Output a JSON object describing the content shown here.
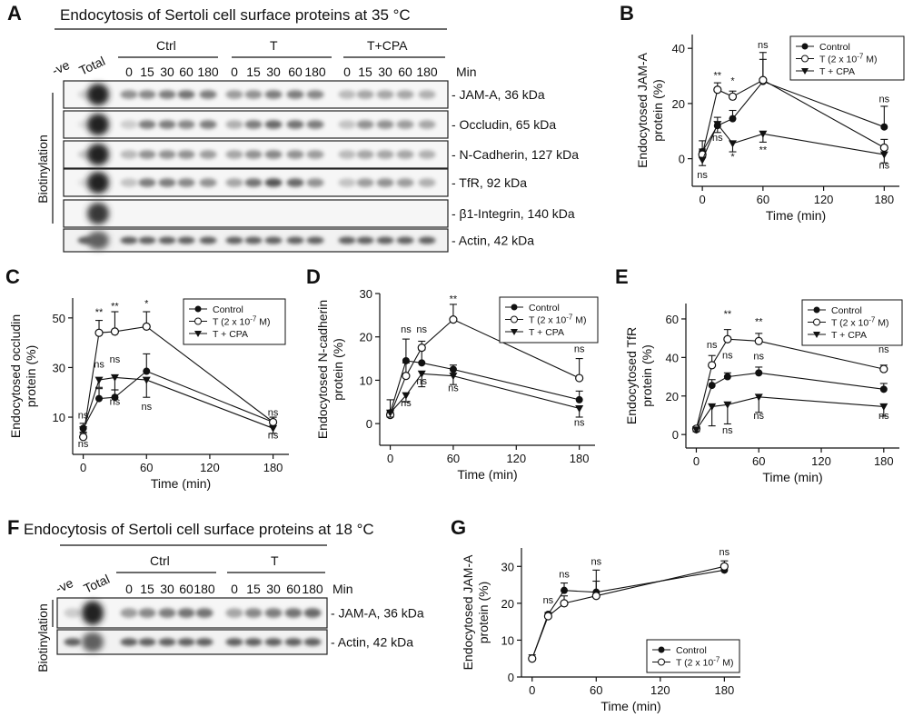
{
  "panelA": {
    "letter": "A",
    "title": "Endocytosis of Sertoli cell surface proteins at 35 °C",
    "groups": [
      "Ctrl",
      "T",
      "T+CPA"
    ],
    "lanes_neg": "-ve",
    "lanes_total": "Total",
    "times": [
      "0",
      "15",
      "30",
      "60",
      "180"
    ],
    "min_label": "Min",
    "side_label": "Biotinylation",
    "bands": [
      "JAM-A, 36 kDa",
      "Occludin, 65 kDa",
      "N-Cadherin, 127 kDa",
      "TfR, 92 kDa",
      "β1-Integrin, 140 kDa",
      "Actin, 42 kDa"
    ]
  },
  "panelF": {
    "letter": "F",
    "title": "Endocytosis of Sertoli cell surface proteins at 18 °C",
    "groups": [
      "Ctrl",
      "T"
    ],
    "lanes_neg": "-ve",
    "lanes_total": "Total",
    "times": [
      "0",
      "15",
      "30",
      "60",
      "180"
    ],
    "min_label": "Min",
    "side_label": "Biotinylation",
    "bands": [
      "JAM-A, 36 kDa",
      "Actin, 42 kDa"
    ]
  },
  "chart_data": [
    {
      "id": "B",
      "letter": "B",
      "type": "line",
      "ylabel": "Endocytosed JAM-A protein (%)",
      "ylabel_lines": [
        "Endocytosed JAM-A",
        "protein (%)"
      ],
      "xlabel": "Time (min)",
      "xlim": [
        -10,
        195
      ],
      "ylim": [
        -10,
        45
      ],
      "xticks": [
        0,
        60,
        120,
        180
      ],
      "yticks": [
        0,
        20,
        40
      ],
      "legend": [
        "Control",
        "T (2 x 10",
        "-7",
        " M)",
        "T + CPA"
      ],
      "series": [
        {
          "name": "Control",
          "marker": "filled",
          "x": [
            0,
            15,
            30,
            60,
            180
          ],
          "y": [
            2.5,
            12,
            14.5,
            28,
            11.5
          ],
          "err": [
            4,
            3,
            3,
            8,
            7.5
          ]
        },
        {
          "name": "T (2 x 10-7 M)",
          "marker": "open",
          "x": [
            0,
            15,
            30,
            60,
            180
          ],
          "y": [
            1.5,
            25,
            22.5,
            28.5,
            4
          ],
          "err": [
            2,
            2.5,
            2,
            10,
            3
          ]
        },
        {
          "name": "T + CPA",
          "marker": "tri",
          "x": [
            0,
            15,
            30,
            60,
            180
          ],
          "y": [
            -0.5,
            12.5,
            5.5,
            9,
            1.5
          ],
          "err": [
            2,
            3,
            3,
            3,
            3
          ]
        }
      ],
      "annotations": [
        {
          "x": 15,
          "y": 29,
          "text": "**"
        },
        {
          "x": 30,
          "y": 27,
          "text": "*"
        },
        {
          "x": 60,
          "y": 40,
          "text": "ns"
        },
        {
          "x": 180,
          "y": 20.5,
          "text": "ns"
        },
        {
          "x": 0,
          "y": -7,
          "text": "ns"
        },
        {
          "x": 15,
          "y": 6.5,
          "text": "ns"
        },
        {
          "x": 30,
          "y": -0.5,
          "text": "*"
        },
        {
          "x": 60,
          "y": 2,
          "text": "**"
        },
        {
          "x": 180,
          "y": -3.5,
          "text": "ns"
        }
      ]
    },
    {
      "id": "C",
      "letter": "C",
      "type": "line",
      "ylabel": "Endocytosed occludin protein (%)",
      "ylabel_lines": [
        "Endocytosed occludin",
        "protein (%)"
      ],
      "xlabel": "Time (min)",
      "xlim": [
        -10,
        195
      ],
      "ylim": [
        -5,
        58
      ],
      "xticks": [
        0,
        60,
        120,
        180
      ],
      "yticks": [
        10,
        30,
        50
      ],
      "legend": [
        "Control",
        "T (2 x 10",
        "-7",
        " M)",
        "T + CPA"
      ],
      "series": [
        {
          "name": "Control",
          "marker": "filled",
          "x": [
            0,
            15,
            30,
            60,
            180
          ],
          "y": [
            5.5,
            17.5,
            18,
            28.5,
            8
          ],
          "err": [
            2,
            4,
            3,
            7,
            2
          ]
        },
        {
          "name": "T (2 x 10-7 M)",
          "marker": "open",
          "x": [
            0,
            15,
            30,
            60,
            180
          ],
          "y": [
            2,
            44,
            44.5,
            46.5,
            8
          ],
          "err": [
            2,
            5,
            8,
            6,
            2
          ]
        },
        {
          "name": "T + CPA",
          "marker": "tri",
          "x": [
            0,
            15,
            30,
            60,
            180
          ],
          "y": [
            5,
            25,
            26,
            25,
            5.5
          ],
          "err": [
            1.5,
            3,
            5,
            7,
            2
          ]
        }
      ],
      "annotations": [
        {
          "x": 0,
          "y": 9.5,
          "text": "ns"
        },
        {
          "x": 15,
          "y": 51,
          "text": "**"
        },
        {
          "x": 30,
          "y": 53.5,
          "text": "**"
        },
        {
          "x": 60,
          "y": 54.5,
          "text": "*"
        },
        {
          "x": 15,
          "y": 30,
          "text": "ns"
        },
        {
          "x": 30,
          "y": 32,
          "text": "ns"
        },
        {
          "x": 180,
          "y": 10.5,
          "text": "ns"
        },
        {
          "x": 0,
          "y": -2,
          "text": "ns"
        },
        {
          "x": 30,
          "y": 15,
          "text": "ns"
        },
        {
          "x": 60,
          "y": 13,
          "text": "ns"
        },
        {
          "x": 180,
          "y": 1.5,
          "text": "ns"
        }
      ]
    },
    {
      "id": "D",
      "letter": "D",
      "type": "line",
      "ylabel": "Endocytosed N-cadherin protein (%)",
      "ylabel_lines": [
        "Endocytosed N-cadherin",
        "protein (%)"
      ],
      "xlabel": "Time (min)",
      "xlim": [
        -10,
        195
      ],
      "ylim": [
        -5,
        30
      ],
      "xticks": [
        0,
        60,
        120,
        180
      ],
      "yticks": [
        0,
        10,
        20,
        30
      ],
      "legend": [
        "Control",
        "T (2 x 10",
        "-7",
        " M)",
        "T + CPA"
      ],
      "series": [
        {
          "name": "Control",
          "marker": "filled",
          "x": [
            0,
            15,
            30,
            60,
            180
          ],
          "y": [
            2.5,
            14.5,
            14,
            12.5,
            5.5
          ],
          "err": [
            3,
            5,
            3,
            1,
            2
          ]
        },
        {
          "name": "T (2 x 10-7 M)",
          "marker": "open",
          "x": [
            0,
            15,
            30,
            60,
            180
          ],
          "y": [
            2,
            11,
            17.5,
            24,
            10.5
          ],
          "err": [
            1,
            3,
            1.5,
            3.5,
            4.5
          ]
        },
        {
          "name": "T + CPA",
          "marker": "tri",
          "x": [
            0,
            15,
            30,
            60,
            180
          ],
          "y": [
            2.5,
            6.5,
            11.5,
            11,
            3.5
          ],
          "err": [
            1,
            1.5,
            3,
            2,
            2
          ]
        }
      ],
      "annotations": [
        {
          "x": 15,
          "y": 21,
          "text": "ns"
        },
        {
          "x": 30,
          "y": 21,
          "text": "ns"
        },
        {
          "x": 60,
          "y": 28,
          "text": "**"
        },
        {
          "x": 180,
          "y": 16.5,
          "text": "ns"
        },
        {
          "x": 15,
          "y": 4,
          "text": "ns"
        },
        {
          "x": 30,
          "y": 9,
          "text": "ns"
        },
        {
          "x": 60,
          "y": 7.5,
          "text": "ns"
        },
        {
          "x": 180,
          "y": -0.5,
          "text": "ns"
        }
      ]
    },
    {
      "id": "E",
      "letter": "E",
      "type": "line",
      "ylabel": "Endocytosed TfR protein (%)",
      "ylabel_lines": [
        "Endocytosed TfR",
        "protein (%)"
      ],
      "xlabel": "Time (min)",
      "xlim": [
        -10,
        195
      ],
      "ylim": [
        -7,
        68
      ],
      "xticks": [
        0,
        60,
        120,
        180
      ],
      "yticks": [
        0,
        20,
        40,
        60
      ],
      "legend": [
        "Control",
        "T (2 x 10",
        "-7",
        " M)",
        "T + CPA"
      ],
      "series": [
        {
          "name": "Control",
          "marker": "filled",
          "x": [
            0,
            15,
            30,
            60,
            180
          ],
          "y": [
            2.5,
            25.5,
            30,
            32,
            23.5
          ],
          "err": [
            1,
            3,
            2,
            3,
            3
          ]
        },
        {
          "name": "T (2 x 10-7 M)",
          "marker": "open",
          "x": [
            0,
            15,
            30,
            60,
            180
          ],
          "y": [
            3,
            36,
            49.5,
            48.5,
            34
          ],
          "err": [
            1,
            5,
            5,
            4,
            2
          ]
        },
        {
          "name": "T + CPA",
          "marker": "tri",
          "x": [
            0,
            15,
            30,
            60,
            180
          ],
          "y": [
            2.5,
            14.5,
            15.5,
            19.5,
            14.5
          ],
          "err": [
            1,
            10,
            10,
            8,
            5
          ]
        }
      ],
      "annotations": [
        {
          "x": 30,
          "y": 61,
          "text": "**"
        },
        {
          "x": 60,
          "y": 57,
          "text": "**"
        },
        {
          "x": 15,
          "y": 45,
          "text": "ns"
        },
        {
          "x": 30,
          "y": 39.5,
          "text": "ns"
        },
        {
          "x": 60,
          "y": 39,
          "text": "ns"
        },
        {
          "x": 180,
          "y": 42.5,
          "text": "ns"
        },
        {
          "x": 30,
          "y": 0.5,
          "text": "ns"
        },
        {
          "x": 60,
          "y": 8,
          "text": "ns"
        },
        {
          "x": 180,
          "y": 8,
          "text": "ns"
        }
      ]
    },
    {
      "id": "G",
      "letter": "G",
      "type": "line",
      "ylabel": "Endocytosed JAM-A protein (%)",
      "ylabel_lines": [
        "Endocytosed JAM-A",
        "protein (%)"
      ],
      "xlabel": "Time (min)",
      "xlim": [
        -10,
        195
      ],
      "ylim": [
        0,
        35
      ],
      "xticks": [
        0,
        60,
        120,
        180
      ],
      "yticks": [
        0,
        10,
        20,
        30
      ],
      "legend": [
        "Control",
        "T (2 x 10",
        "-7",
        " M)"
      ],
      "series": [
        {
          "name": "Control",
          "marker": "filled",
          "x": [
            0,
            15,
            30,
            60,
            180
          ],
          "y": [
            5,
            17,
            23.5,
            23,
            29
          ],
          "err": [
            0,
            0,
            2,
            6,
            1.5
          ]
        },
        {
          "name": "T (2 x 10-7 M)",
          "marker": "open",
          "x": [
            0,
            15,
            30,
            60,
            180
          ],
          "y": [
            5,
            16.5,
            20,
            22,
            30
          ],
          "err": [
            1,
            1,
            2,
            4,
            1.5
          ]
        }
      ],
      "annotations": [
        {
          "x": 15,
          "y": 20,
          "text": "ns"
        },
        {
          "x": 30,
          "y": 27,
          "text": "ns"
        },
        {
          "x": 60,
          "y": 30.5,
          "text": "ns"
        },
        {
          "x": 180,
          "y": 33,
          "text": "ns"
        }
      ]
    }
  ]
}
